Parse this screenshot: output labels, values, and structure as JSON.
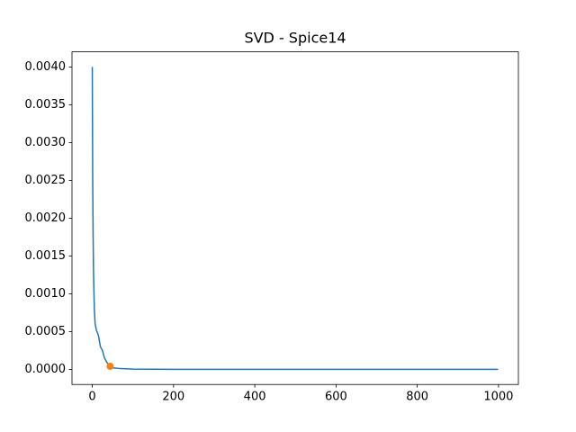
{
  "chart_data": {
    "type": "line",
    "title": "SVD - Spice14",
    "series": [
      {
        "color": "#1f77b4",
        "style": "line",
        "x": [
          0,
          1,
          2,
          3,
          5,
          7,
          10,
          15,
          20,
          25,
          30,
          35,
          40,
          44,
          50,
          70,
          100,
          200,
          999
        ],
        "values": [
          0.004,
          0.0025,
          0.0018,
          0.0013,
          0.0008,
          0.0006,
          0.00052,
          0.00045,
          0.0003,
          0.00025,
          0.00015,
          0.0001,
          6e-05,
          4e-05,
          2e-05,
          1e-05,
          3e-06,
          0,
          0
        ]
      },
      {
        "color": "#ff7f0e",
        "style": "marker",
        "x": [
          44
        ],
        "values": [
          4e-05
        ]
      }
    ],
    "xlim": [
      -49.95,
      1048.95
    ],
    "xticks": [
      0,
      200,
      400,
      600,
      800,
      1000
    ],
    "ylim": [
      -0.0002,
      0.0042
    ],
    "yticks": [
      {
        "value": 0,
        "label": "0.0000"
      },
      {
        "value": 0.0005,
        "label": "0.0005"
      },
      {
        "value": 0.001,
        "label": "0.0010"
      },
      {
        "value": 0.0015,
        "label": "0.0015"
      },
      {
        "value": 0.002,
        "label": "0.0020"
      },
      {
        "value": 0.0025,
        "label": "0.0025"
      },
      {
        "value": 0.003,
        "label": "0.0030"
      },
      {
        "value": 0.0035,
        "label": "0.0035"
      },
      {
        "value": 0.004,
        "label": "0.0040"
      }
    ],
    "grid": false
  }
}
